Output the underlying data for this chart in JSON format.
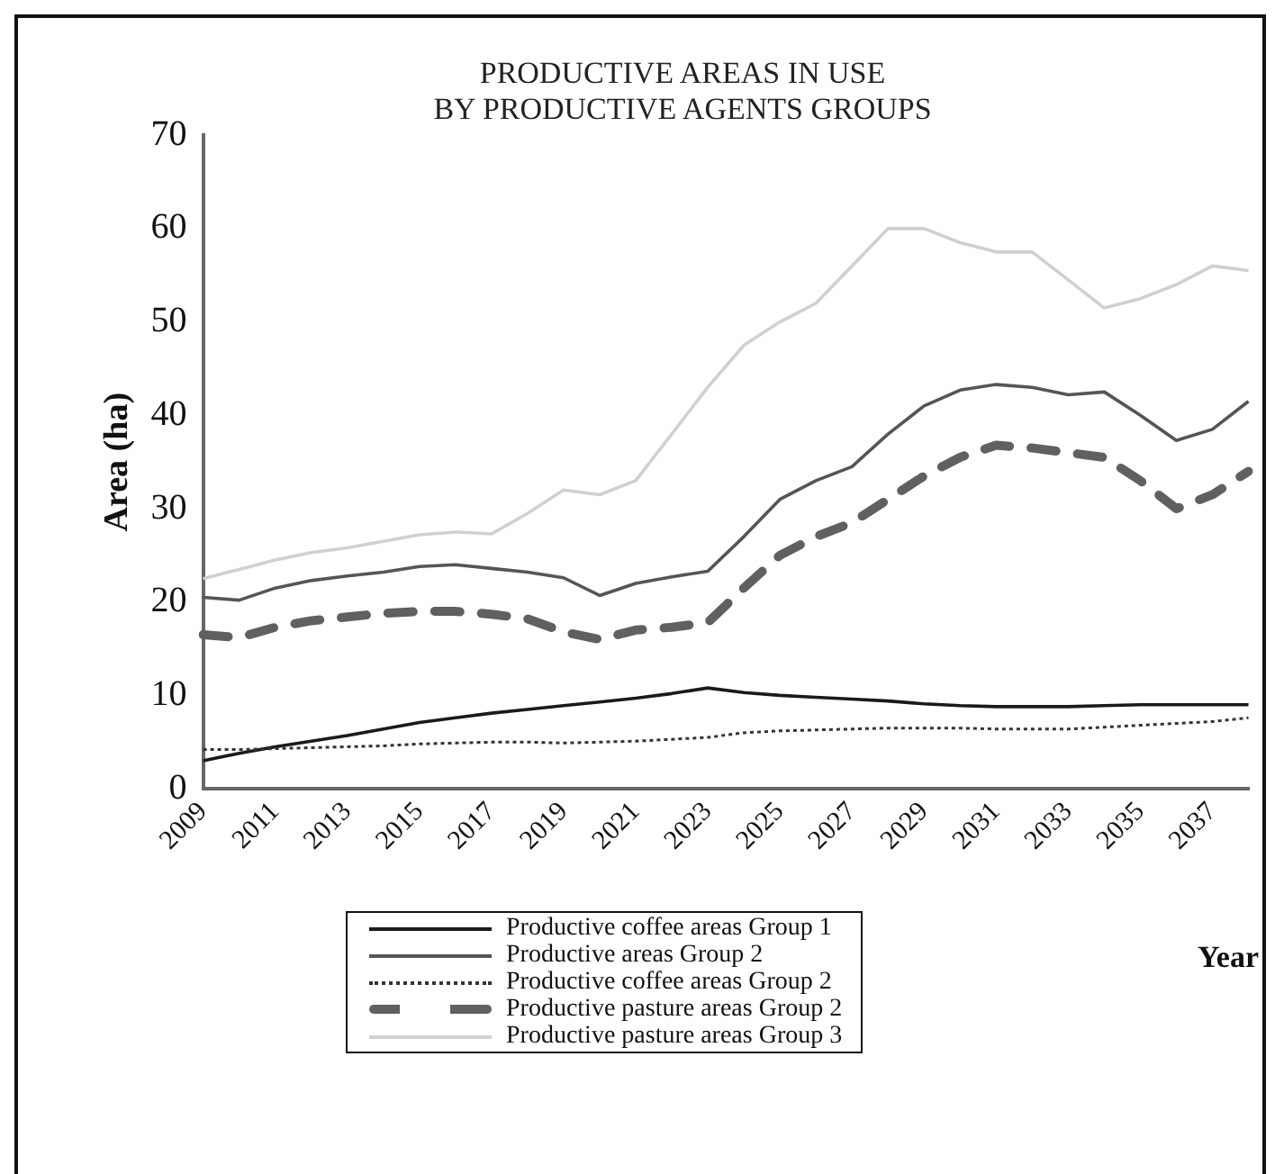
{
  "chart_data": {
    "type": "line",
    "title": "PRODUCTIVE AREAS IN USE\nBY PRODUCTIVE AGENTS GROUPS",
    "xlabel": "Year",
    "ylabel": "Area (ha)",
    "categories": [
      "2009",
      null,
      "2011",
      null,
      "2013",
      null,
      "2015",
      null,
      "2017",
      null,
      "2019",
      null,
      "2021",
      null,
      "2023",
      null,
      "2025",
      null,
      "2027",
      null,
      "2029",
      null,
      "2031",
      null,
      "2033",
      null,
      "2035",
      null,
      "2037",
      null
    ],
    "ylim": [
      0,
      70
    ],
    "yticks": [
      0,
      10,
      20,
      30,
      40,
      50,
      60,
      70
    ],
    "grid": false,
    "legend": "bottom",
    "marker": "none",
    "series": [
      {
        "name": "Productive coffee areas Group 1",
        "color": "#1a1a1a",
        "line_style": "solid",
        "values": [
          3,
          3.8,
          4.5,
          5.1,
          5.7,
          6.4,
          7.1,
          7.6,
          8.1,
          8.5,
          8.9,
          9.3,
          9.7,
          10.2,
          10.8,
          10.3,
          10,
          9.8,
          9.6,
          9.4,
          9.1,
          8.9,
          8.8,
          8.8,
          8.8,
          8.9,
          9,
          9,
          9,
          9
        ]
      },
      {
        "name": "Productive areas Group 2",
        "color": "#555555",
        "line_style": "solid",
        "values": [
          20.5,
          20.2,
          21.5,
          22.3,
          22.8,
          23.2,
          23.8,
          24,
          23.6,
          23.2,
          22.6,
          20.7,
          22,
          22.7,
          23.3,
          27,
          31,
          33,
          34.5,
          38,
          41,
          42.7,
          43.3,
          43,
          42.2,
          42.5,
          40,
          37.3,
          38.5,
          41.5
        ]
      },
      {
        "name": "Productive coffee areas Group 2",
        "color": "#333333",
        "line_style": "dotted",
        "values": [
          4.2,
          4.2,
          4.3,
          4.4,
          4.5,
          4.6,
          4.8,
          4.9,
          5,
          5,
          4.9,
          5,
          5.1,
          5.3,
          5.5,
          6,
          6.2,
          6.3,
          6.4,
          6.5,
          6.5,
          6.5,
          6.4,
          6.4,
          6.4,
          6.6,
          6.8,
          7,
          7.2,
          7.6
        ]
      },
      {
        "name": "Productive pasture areas Group 2",
        "color": "#606060",
        "line_style": "dashed",
        "values": [
          16.5,
          16.2,
          17.3,
          18,
          18.4,
          18.8,
          19,
          19,
          18.7,
          18.2,
          16.8,
          16,
          17,
          17.3,
          17.8,
          21.5,
          25,
          27,
          28.5,
          31,
          33.5,
          35.5,
          36.8,
          36.5,
          36,
          35.5,
          33,
          30,
          31.5,
          34
        ]
      },
      {
        "name": "Productive pasture areas Group 3",
        "color": "#d0d0d0",
        "line_style": "solid",
        "values": [
          22.5,
          23.5,
          24.5,
          25.3,
          25.8,
          26.5,
          27.2,
          27.5,
          27.3,
          29.5,
          32,
          31.5,
          33,
          38,
          43,
          47.5,
          50,
          52,
          56,
          60,
          60,
          58.5,
          57.5,
          57.5,
          54.5,
          51.5,
          52.5,
          54,
          56,
          55.5
        ]
      }
    ]
  }
}
